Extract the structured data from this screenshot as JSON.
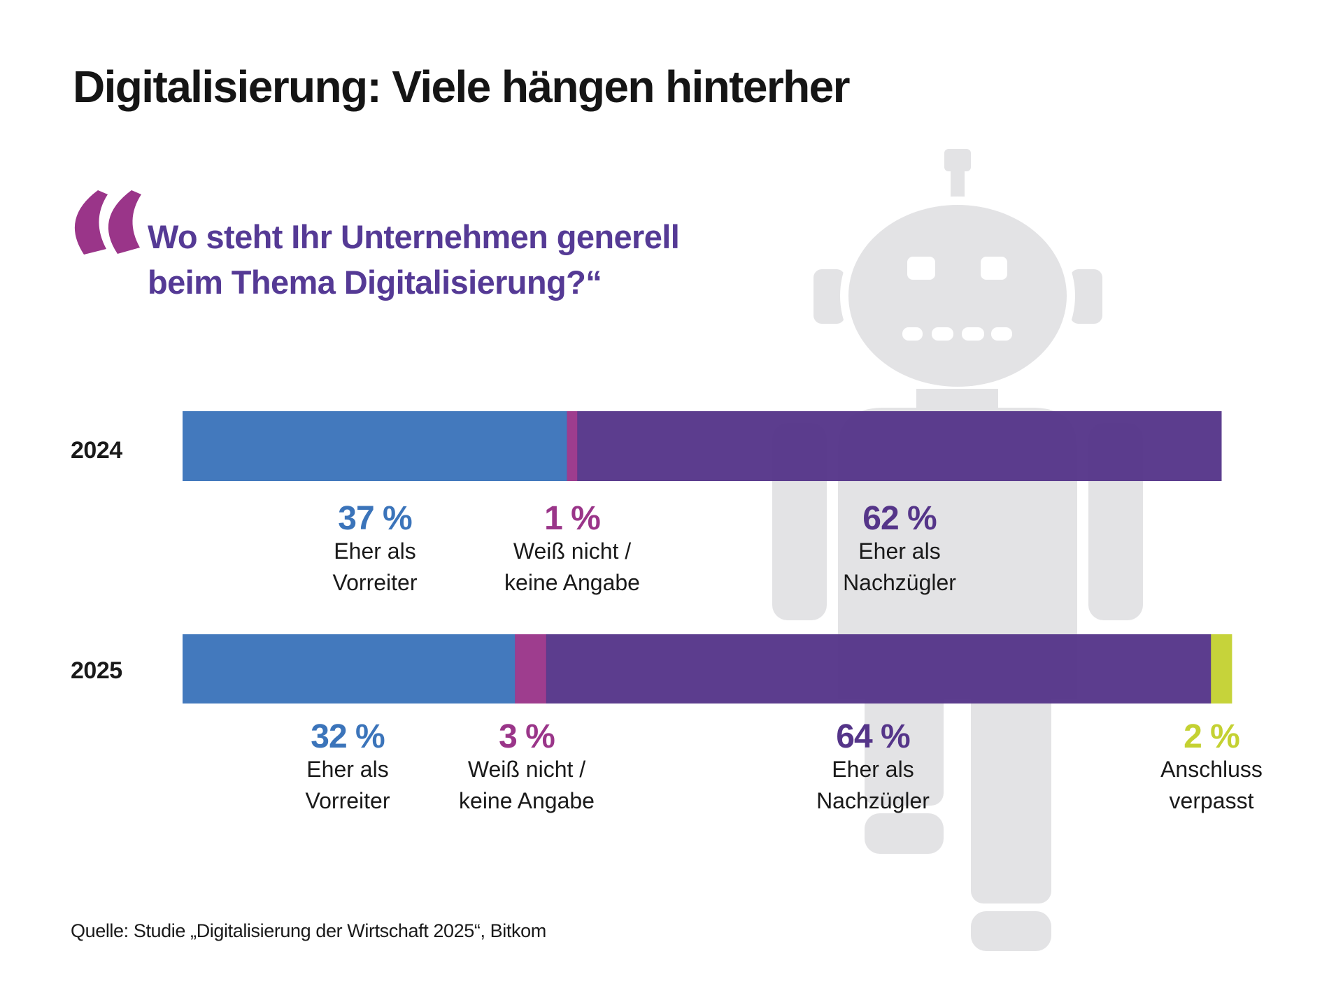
{
  "title": "Digitalisierung: Viele hängen hinterher",
  "question": {
    "line1": "Wo steht Ihr Unternehmen generell",
    "line2": "beim Thema Digitalisierung?“",
    "quote_icon": "opening-quote-icon"
  },
  "decoration": {
    "icon": "robot-icon",
    "color": "#E3E3E5"
  },
  "colors": {
    "vorreiter": "#3B74BA",
    "weiss_nicht": "#9A3589",
    "nachzuegler": "#553589",
    "anschluss": "#C4D132",
    "quote": "#9A3589",
    "question": "#553A95"
  },
  "source": "Quelle: Studie „Digitalisierung der Wirtschaft 2025“, Bitkom",
  "chart_data": {
    "type": "bar",
    "orientation": "horizontal",
    "stacked": true,
    "title": "Digitalisierung: Viele hängen hinterher",
    "subtitle": "Wo steht Ihr Unternehmen generell beim Thema Digitalisierung?",
    "categories": [
      "2024",
      "2025"
    ],
    "unit": "%",
    "xlim": [
      0,
      100
    ],
    "grid": false,
    "legend": "inline-below-bars",
    "series": [
      {
        "key": "vorreiter",
        "name": "Eher als Vorreiter",
        "label_lines": [
          "Eher als",
          "Vorreiter"
        ],
        "color": "#3B74BA",
        "values": [
          37,
          32
        ],
        "labels": [
          "37 %",
          "32 %"
        ]
      },
      {
        "key": "weiss_nicht",
        "name": "Weiß nicht / keine Angabe",
        "label_lines": [
          "Weiß nicht /",
          "keine Angabe"
        ],
        "color": "#9A3589",
        "values": [
          1,
          3
        ],
        "labels": [
          "1 %",
          "3 %"
        ]
      },
      {
        "key": "nachzuegler",
        "name": "Eher als Nachzügler",
        "label_lines": [
          "Eher als",
          "Nachzügler"
        ],
        "color": "#553589",
        "values": [
          62,
          64
        ],
        "labels": [
          "62 %",
          "64 %"
        ]
      },
      {
        "key": "anschluss",
        "name": "Anschluss verpasst",
        "label_lines": [
          "Anschluss",
          "verpasst"
        ],
        "color": "#C4D132",
        "values": [
          0,
          2
        ],
        "labels": [
          null,
          "2 %"
        ]
      }
    ],
    "source": "Quelle: Studie „Digitalisierung der Wirtschaft 2025“, Bitkom"
  }
}
